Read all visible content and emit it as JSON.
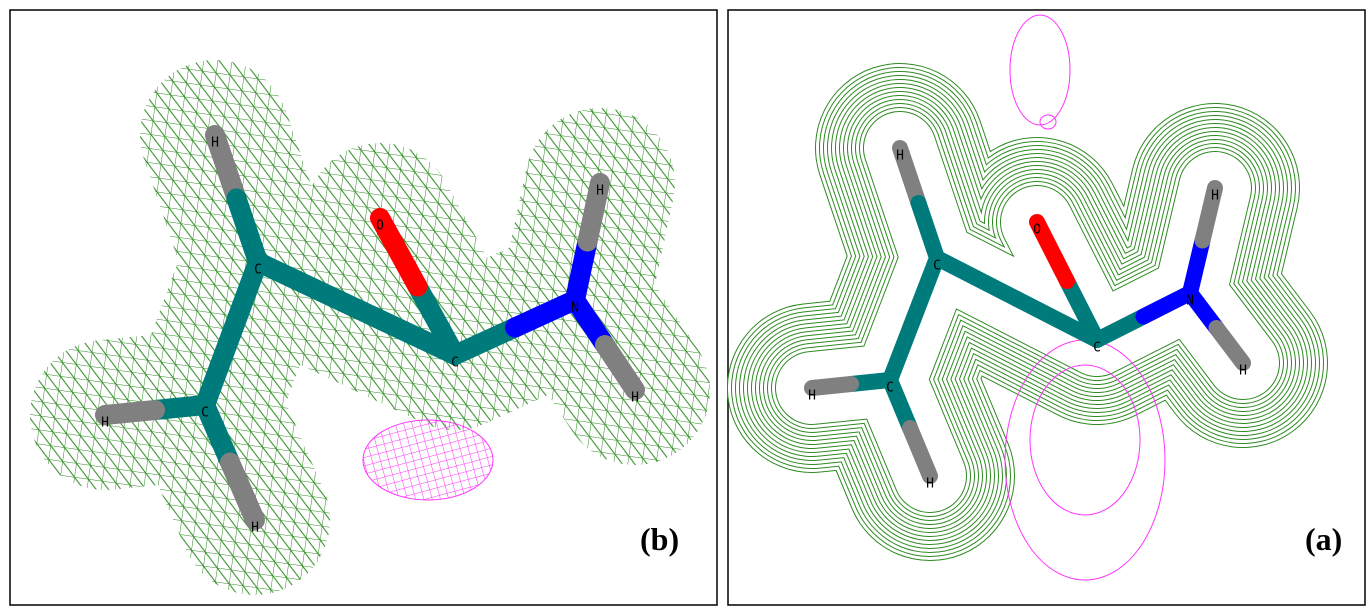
{
  "panels": [
    {
      "label": "(b)",
      "atoms": [
        {
          "label": "H"
        },
        {
          "label": "C"
        },
        {
          "label": "O"
        },
        {
          "label": "C"
        },
        {
          "label": "N"
        },
        {
          "label": "H"
        },
        {
          "label": "H"
        },
        {
          "label": "C"
        },
        {
          "label": "H"
        },
        {
          "label": "H"
        }
      ]
    },
    {
      "label": "(a)",
      "atoms": [
        {
          "label": "H"
        },
        {
          "label": "C"
        },
        {
          "label": "O"
        },
        {
          "label": "C"
        },
        {
          "label": "N"
        },
        {
          "label": "H"
        },
        {
          "label": "H"
        },
        {
          "label": "C"
        },
        {
          "label": "H"
        },
        {
          "label": "H"
        }
      ]
    }
  ]
}
